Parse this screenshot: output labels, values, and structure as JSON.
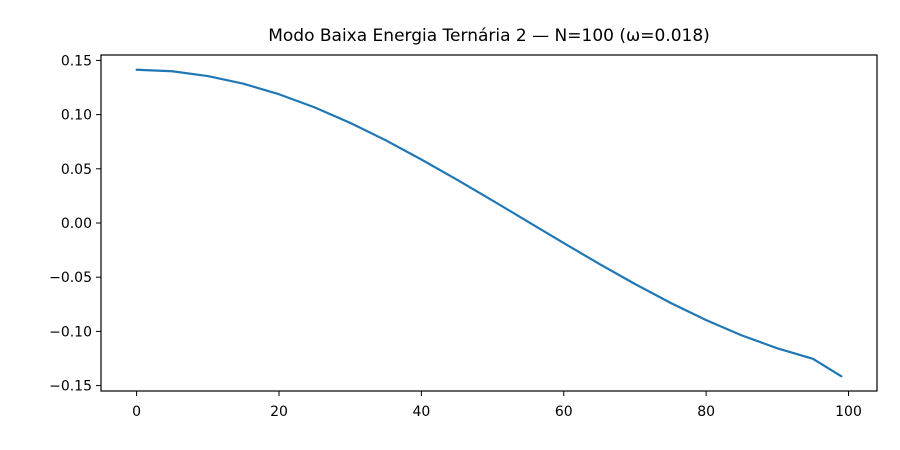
{
  "chart_data": {
    "type": "line",
    "title": "Modo Baixa Energia Ternária 2 — N=100 (ω=0.018)",
    "xlabel": "",
    "ylabel": "",
    "xlim": [
      -5,
      104
    ],
    "ylim": [
      -0.155,
      0.155
    ],
    "xticks": [
      0,
      20,
      40,
      60,
      80,
      100
    ],
    "xtick_labels": [
      "0",
      "20",
      "40",
      "60",
      "80",
      "100"
    ],
    "yticks": [
      0.15,
      0.1,
      0.05,
      0.0,
      -0.05,
      -0.1,
      -0.15
    ],
    "ytick_labels": [
      "0.15",
      "0.10",
      "0.05",
      "0.00",
      "−0.05",
      "−0.10",
      "−0.15"
    ],
    "grid": false,
    "series": [
      {
        "color": "#1f77b4",
        "x": [
          0,
          5,
          10,
          15,
          20,
          25,
          30,
          35,
          40,
          45,
          50,
          55,
          60,
          65,
          70,
          75,
          80,
          85,
          90,
          95,
          99
        ],
        "y": [
          0.1414,
          0.14,
          0.1356,
          0.1285,
          0.1188,
          0.1067,
          0.0924,
          0.0763,
          0.0586,
          0.04,
          0.0207,
          0.0011,
          -0.0185,
          -0.0378,
          -0.0563,
          -0.0737,
          -0.0896,
          -0.1037,
          -0.1156,
          -0.1253,
          -0.1414
        ]
      }
    ]
  }
}
